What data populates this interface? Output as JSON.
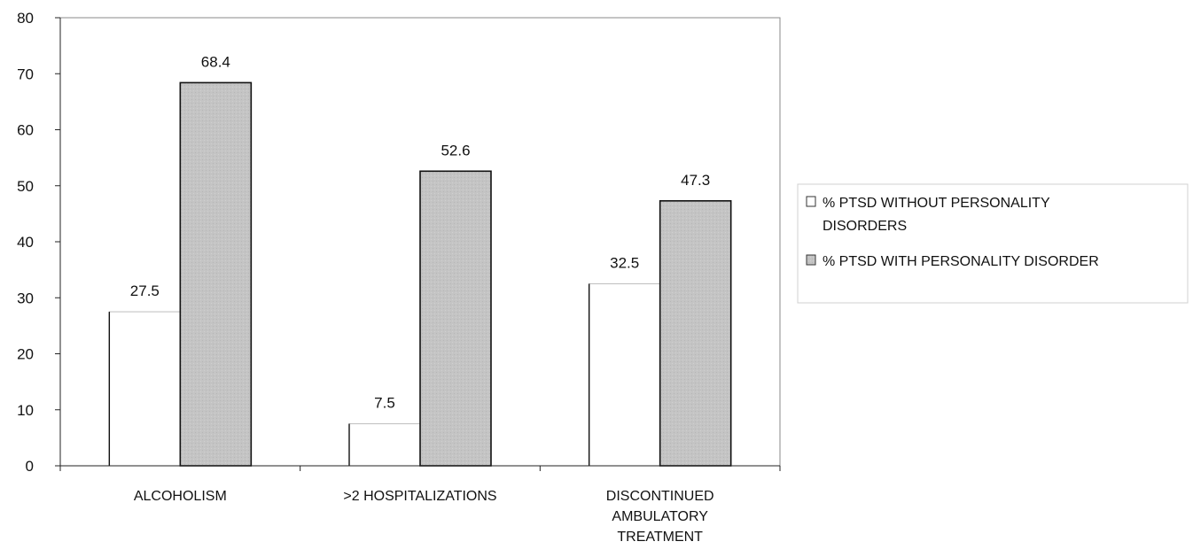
{
  "chart_data": {
    "type": "bar",
    "categories": [
      [
        "ALCOHOLISM"
      ],
      [
        ">2 HOSPITALIZATIONS"
      ],
      [
        "DISCONTINUED",
        "AMBULATORY",
        "TREATMENT"
      ]
    ],
    "series": [
      {
        "name": [
          "% PTSD WITHOUT PERSONALITY",
          "DISORDERS"
        ],
        "values": [
          27.5,
          7.5,
          32.5
        ],
        "labels": [
          "27.5",
          "7.5",
          "32.5"
        ],
        "color": "#ffffff"
      },
      {
        "name": [
          "% PTSD WITH PERSONALITY DISORDER"
        ],
        "values": [
          68.4,
          52.6,
          47.3
        ],
        "labels": [
          "68.4",
          "52.6",
          "47.3"
        ],
        "color": "#c4c4c4"
      }
    ],
    "yticks": [
      "0",
      "10",
      "20",
      "30",
      "40",
      "50",
      "60",
      "70",
      "80"
    ],
    "ylim": [
      0,
      80
    ],
    "grid": false,
    "legend_position": "right",
    "title": "",
    "xlabel": "",
    "ylabel": ""
  }
}
